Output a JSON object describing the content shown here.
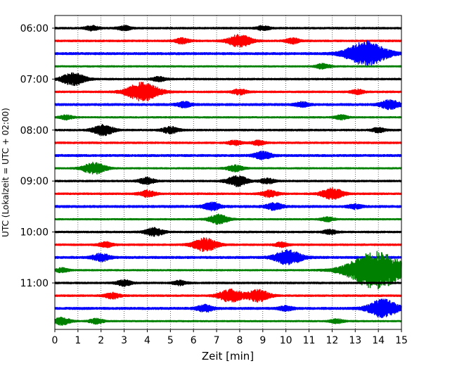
{
  "chart_data": {
    "type": "line",
    "subtype": "helicorder",
    "title": "",
    "xlabel": "Zeit  [min]",
    "ylabel": "UTC (Lokalzeit = UTC + 02:00)",
    "xlim": [
      0,
      15
    ],
    "x_ticks": [
      "0",
      "1",
      "2",
      "3",
      "4",
      "5",
      "6",
      "7",
      "8",
      "9",
      "10",
      "11",
      "12",
      "13",
      "14",
      "15"
    ],
    "y_ticks": [
      "06:00",
      "07:00",
      "08:00",
      "09:00",
      "10:00",
      "11:00"
    ],
    "grid": "vertical dotted at each minute",
    "colors": [
      "#000000",
      "#ff0000",
      "#0000ff",
      "#008000"
    ],
    "trace_interval_min": 15,
    "traces": [
      {
        "start": "06:00",
        "color": "#000000",
        "base": 1.2,
        "events": [
          [
            1.6,
            3.0
          ],
          [
            3.0,
            3.0
          ],
          [
            9.0,
            3.0
          ]
        ]
      },
      {
        "start": "06:15",
        "color": "#ff0000",
        "base": 1.2,
        "events": [
          [
            5.5,
            3.5
          ],
          [
            8.0,
            8.5
          ],
          [
            10.3,
            3.5
          ]
        ]
      },
      {
        "start": "06:30",
        "color": "#0000ff",
        "base": 1.5,
        "events": [
          [
            13.5,
            17.0
          ]
        ]
      },
      {
        "start": "06:45",
        "color": "#008000",
        "base": 1.0,
        "events": [
          [
            11.6,
            3.5
          ]
        ]
      },
      {
        "start": "07:00",
        "color": "#000000",
        "base": 1.2,
        "events": [
          [
            0.8,
            8.5
          ],
          [
            4.5,
            3.0
          ]
        ]
      },
      {
        "start": "07:15",
        "color": "#ff0000",
        "base": 1.2,
        "events": [
          [
            3.8,
            13.0
          ],
          [
            8.0,
            3.5
          ],
          [
            13.1,
            3.0
          ]
        ]
      },
      {
        "start": "07:30",
        "color": "#0000ff",
        "base": 1.5,
        "events": [
          [
            5.6,
            3.5
          ],
          [
            10.7,
            3.0
          ],
          [
            14.5,
            6.0
          ]
        ]
      },
      {
        "start": "07:45",
        "color": "#008000",
        "base": 1.0,
        "events": [
          [
            0.5,
            3.0
          ],
          [
            12.4,
            3.0
          ]
        ]
      },
      {
        "start": "08:00",
        "color": "#000000",
        "base": 1.2,
        "events": [
          [
            2.1,
            7.0
          ],
          [
            5.0,
            4.5
          ],
          [
            14.0,
            3.0
          ]
        ]
      },
      {
        "start": "08:15",
        "color": "#ff0000",
        "base": 1.2,
        "events": [
          [
            7.8,
            3.0
          ],
          [
            8.8,
            3.0
          ]
        ]
      },
      {
        "start": "08:30",
        "color": "#0000ff",
        "base": 1.5,
        "events": [
          [
            9.0,
            5.0
          ]
        ]
      },
      {
        "start": "08:45",
        "color": "#008000",
        "base": 1.0,
        "events": [
          [
            1.7,
            8.0
          ],
          [
            7.8,
            4.5
          ]
        ]
      },
      {
        "start": "09:00",
        "color": "#000000",
        "base": 1.2,
        "events": [
          [
            4.0,
            4.5
          ],
          [
            7.9,
            7.0
          ],
          [
            9.2,
            3.5
          ]
        ]
      },
      {
        "start": "09:15",
        "color": "#ff0000",
        "base": 1.2,
        "events": [
          [
            4.0,
            4.5
          ],
          [
            9.3,
            4.5
          ],
          [
            12.0,
            7.5
          ]
        ]
      },
      {
        "start": "09:30",
        "color": "#0000ff",
        "base": 1.5,
        "events": [
          [
            6.8,
            5.0
          ],
          [
            9.5,
            4.5
          ],
          [
            13.0,
            3.0
          ]
        ]
      },
      {
        "start": "09:45",
        "color": "#008000",
        "base": 1.0,
        "events": [
          [
            7.1,
            6.5
          ],
          [
            11.8,
            3.0
          ]
        ]
      },
      {
        "start": "10:00",
        "color": "#000000",
        "base": 1.2,
        "events": [
          [
            4.3,
            5.5
          ],
          [
            11.9,
            3.0
          ]
        ]
      },
      {
        "start": "10:15",
        "color": "#ff0000",
        "base": 1.2,
        "events": [
          [
            2.2,
            3.5
          ],
          [
            6.5,
            9.0
          ],
          [
            9.8,
            3.0
          ]
        ]
      },
      {
        "start": "10:30",
        "color": "#0000ff",
        "base": 1.5,
        "events": [
          [
            2.0,
            5.0
          ],
          [
            10.1,
            10.0
          ]
        ]
      },
      {
        "start": "10:45",
        "color": "#008000",
        "base": 1.0,
        "events": [
          [
            0.3,
            3.0
          ],
          [
            13.9,
            26.0
          ]
        ]
      },
      {
        "start": "11:00",
        "color": "#000000",
        "base": 1.2,
        "events": [
          [
            3.0,
            4.0
          ],
          [
            5.4,
            3.0
          ]
        ]
      },
      {
        "start": "11:15",
        "color": "#ff0000",
        "base": 1.2,
        "events": [
          [
            2.5,
            4.0
          ],
          [
            7.6,
            8.5
          ],
          [
            8.8,
            8.0
          ]
        ]
      },
      {
        "start": "11:30",
        "color": "#0000ff",
        "base": 1.5,
        "events": [
          [
            6.5,
            4.5
          ],
          [
            10.0,
            3.0
          ],
          [
            14.2,
            12.0
          ]
        ]
      },
      {
        "start": "11:45",
        "color": "#008000",
        "base": 1.0,
        "events": [
          [
            0.3,
            5.0
          ],
          [
            1.8,
            3.5
          ],
          [
            12.2,
            3.0
          ]
        ]
      }
    ]
  }
}
